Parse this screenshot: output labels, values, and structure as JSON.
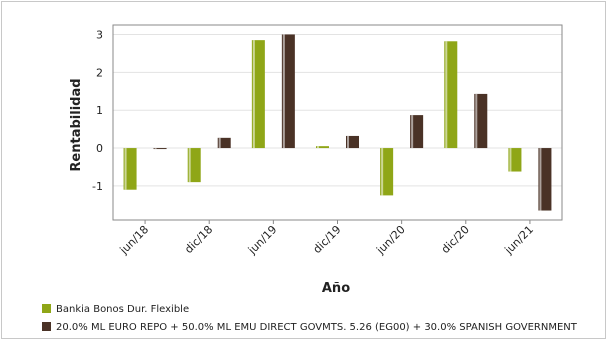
{
  "chart_data": {
    "type": "bar",
    "categories": [
      "jun/18",
      "dic/18",
      "jun/19",
      "dic/19",
      "jun/20",
      "dic/20",
      "jun/21"
    ],
    "series": [
      {
        "name": "Bankia Bonos Dur. Flexible",
        "color": "#8fa617",
        "values": [
          -1.1,
          -0.9,
          2.85,
          0.05,
          -1.25,
          2.82,
          -0.62
        ]
      },
      {
        "name": "20.0% ML EURO REPO + 50.0% ML EMU DIRECT GOVMTS. 5.26 (EG00) + 30.0% SPANISH GOVERNMENT",
        "color": "#4a3226",
        "values": [
          0.0,
          0.27,
          3.0,
          0.32,
          0.87,
          1.43,
          -1.65
        ]
      }
    ],
    "xlabel": "Año",
    "ylabel": "Rentabilidad",
    "ylim": [
      -1.9,
      3.25
    ],
    "yticks": [
      -1,
      0,
      1,
      2,
      3
    ],
    "grid": true,
    "legend_position": "bottom-left"
  }
}
